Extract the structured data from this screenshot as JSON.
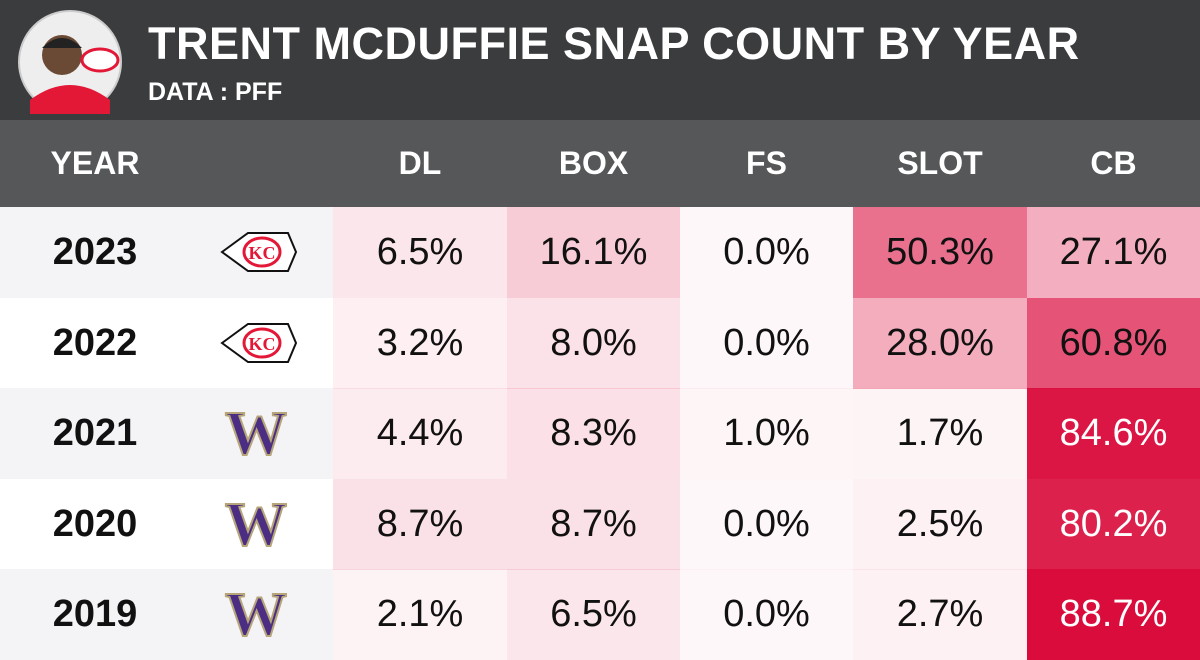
{
  "header": {
    "title": "TRENT MCDUFFIE SNAP COUNT BY YEAR",
    "subtitle": "DATA : PFF"
  },
  "table": {
    "columns": [
      "YEAR",
      "DL",
      "BOX",
      "FS",
      "SLOT",
      "CB"
    ],
    "rows": [
      [
        "2023",
        "6.5%",
        "16.1%",
        "0.0%",
        "50.3%",
        "27.1%"
      ],
      [
        "2022",
        "3.2%",
        "8.0%",
        "0.0%",
        "28.0%",
        "60.8%"
      ],
      [
        "2021",
        "4.4%",
        "8.3%",
        "1.0%",
        "1.7%",
        "84.6%"
      ],
      [
        "2020",
        "8.7%",
        "8.7%",
        "0.0%",
        "2.5%",
        "80.2%"
      ],
      [
        "2019",
        "2.1%",
        "6.5%",
        "0.0%",
        "2.7%",
        "88.7%"
      ]
    ]
  }
}
